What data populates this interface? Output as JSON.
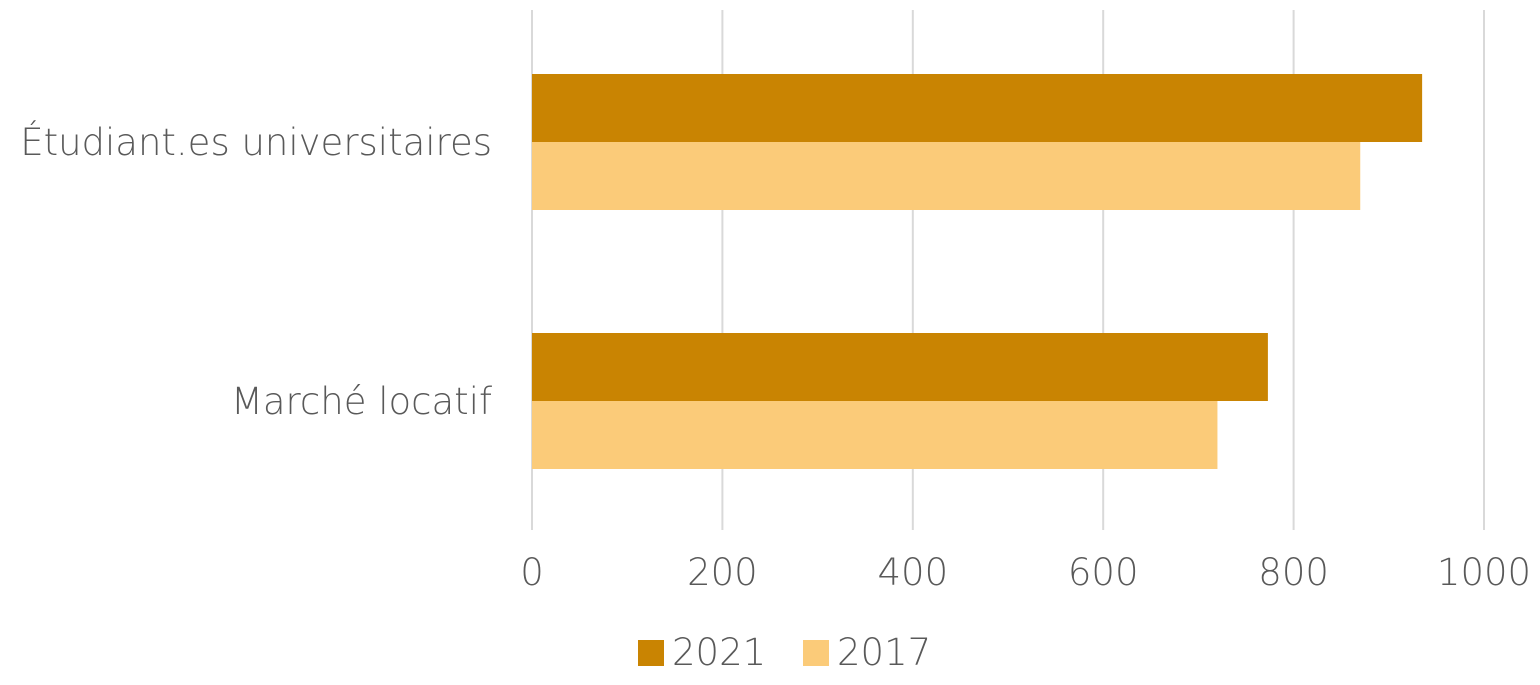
{
  "chart_data": {
    "type": "bar",
    "orientation": "horizontal",
    "categories": [
      "Étudiant.es universitaires",
      "Marché locatif"
    ],
    "series": [
      {
        "name": "2021",
        "color": "#C98402",
        "values": [
          935,
          773
        ]
      },
      {
        "name": "2017",
        "color": "#FBCB79",
        "values": [
          870,
          720
        ]
      }
    ],
    "xlim": [
      0,
      1000
    ],
    "xticks": [
      "0",
      "200",
      "400",
      "600",
      "800",
      "1000"
    ],
    "grid": true,
    "legend": "bottom"
  }
}
